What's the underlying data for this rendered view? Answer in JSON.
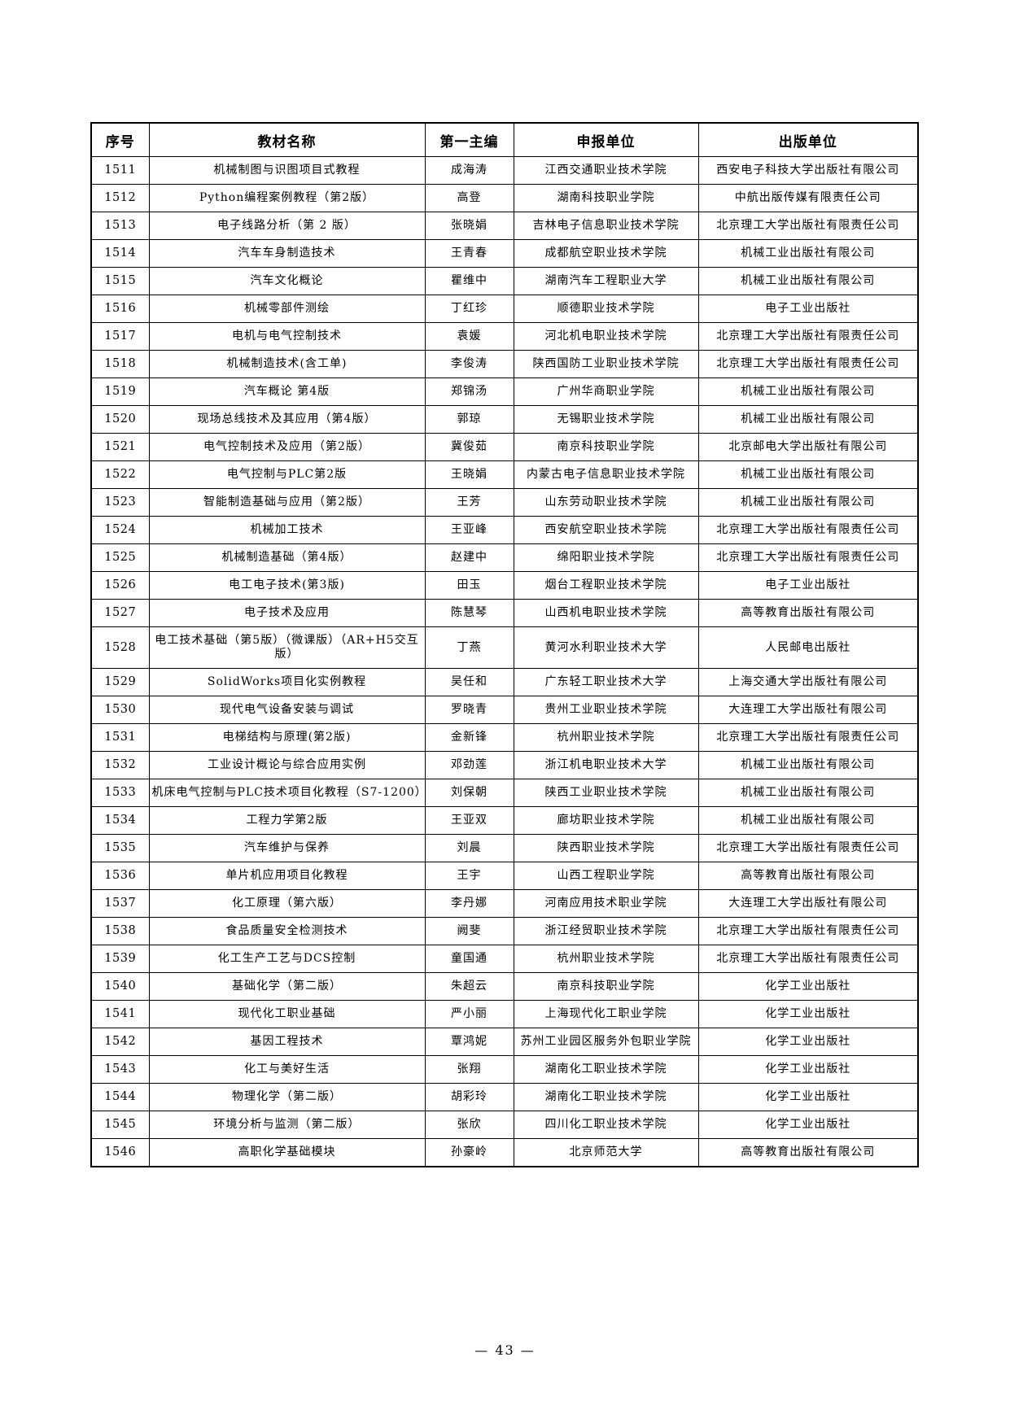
{
  "footer": {
    "page_number": "— 43 —"
  },
  "table": {
    "columns": [
      "序号",
      "教材名称",
      "第一主编",
      "申报单位",
      "出版单位"
    ],
    "rows": [
      {
        "no": "1511",
        "title": "机械制图与识图项目式教程",
        "editor": "成海涛",
        "applicant": "江西交通职业技术学院",
        "publisher": "西安电子科技大学出版社有限公司"
      },
      {
        "no": "1512",
        "title": "Python编程案例教程（第2版）",
        "editor": "高登",
        "applicant": "湖南科技职业学院",
        "publisher": "中航出版传媒有限责任公司"
      },
      {
        "no": "1513",
        "title": "电子线路分析（第 2 版）",
        "editor": "张晓娟",
        "applicant": "吉林电子信息职业技术学院",
        "publisher": "北京理工大学出版社有限责任公司"
      },
      {
        "no": "1514",
        "title": "汽车车身制造技术",
        "editor": "王青春",
        "applicant": "成都航空职业技术学院",
        "publisher": "机械工业出版社有限公司"
      },
      {
        "no": "1515",
        "title": "汽车文化概论",
        "editor": "瞿维中",
        "applicant": "湖南汽车工程职业大学",
        "publisher": "机械工业出版社有限公司"
      },
      {
        "no": "1516",
        "title": "机械零部件测绘",
        "editor": "丁红珍",
        "applicant": "顺德职业技术学院",
        "publisher": "电子工业出版社"
      },
      {
        "no": "1517",
        "title": "电机与电气控制技术",
        "editor": "袁媛",
        "applicant": "河北机电职业技术学院",
        "publisher": "北京理工大学出版社有限责任公司"
      },
      {
        "no": "1518",
        "title": "机械制造技术(含工单)",
        "editor": "李俊涛",
        "applicant": "陕西国防工业职业技术学院",
        "publisher": "北京理工大学出版社有限责任公司"
      },
      {
        "no": "1519",
        "title": "汽车概论 第4版",
        "editor": "郑锦汤",
        "applicant": "广州华商职业学院",
        "publisher": "机械工业出版社有限公司"
      },
      {
        "no": "1520",
        "title": "现场总线技术及其应用（第4版）",
        "editor": "郭琼",
        "applicant": "无锡职业技术学院",
        "publisher": "机械工业出版社有限公司"
      },
      {
        "no": "1521",
        "title": "电气控制技术及应用（第2版）",
        "editor": "冀俊茹",
        "applicant": "南京科技职业学院",
        "publisher": "北京邮电大学出版社有限公司"
      },
      {
        "no": "1522",
        "title": "电气控制与PLC第2版",
        "editor": "王晓娟",
        "applicant": "内蒙古电子信息职业技术学院",
        "publisher": "机械工业出版社有限公司"
      },
      {
        "no": "1523",
        "title": "智能制造基础与应用（第2版）",
        "editor": "王芳",
        "applicant": "山东劳动职业技术学院",
        "publisher": "机械工业出版社有限公司"
      },
      {
        "no": "1524",
        "title": "机械加工技术",
        "editor": "王亚峰",
        "applicant": "西安航空职业技术学院",
        "publisher": "北京理工大学出版社有限责任公司"
      },
      {
        "no": "1525",
        "title": "机械制造基础（第4版）",
        "editor": "赵建中",
        "applicant": "绵阳职业技术学院",
        "publisher": "北京理工大学出版社有限责任公司"
      },
      {
        "no": "1526",
        "title": "电工电子技术(第3版)",
        "editor": "田玉",
        "applicant": "烟台工程职业技术学院",
        "publisher": "电子工业出版社"
      },
      {
        "no": "1527",
        "title": "电子技术及应用",
        "editor": "陈慧琴",
        "applicant": "山西机电职业技术学院",
        "publisher": "高等教育出版社有限公司"
      },
      {
        "no": "1528",
        "title": "电工技术基础（第5版）（微课版）（AR+H5交互版）",
        "editor": "丁燕",
        "applicant": "黄河水利职业技术大学",
        "publisher": "人民邮电出版社"
      },
      {
        "no": "1529",
        "title": "SolidWorks项目化实例教程",
        "editor": "吴任和",
        "applicant": "广东轻工职业技术大学",
        "publisher": "上海交通大学出版社有限公司"
      },
      {
        "no": "1530",
        "title": "现代电气设备安装与调试",
        "editor": "罗晓青",
        "applicant": "贵州工业职业技术学院",
        "publisher": "大连理工大学出版社有限公司"
      },
      {
        "no": "1531",
        "title": "电梯结构与原理(第2版)",
        "editor": "金新锋",
        "applicant": "杭州职业技术学院",
        "publisher": "北京理工大学出版社有限责任公司"
      },
      {
        "no": "1532",
        "title": "工业设计概论与综合应用实例",
        "editor": "邓劲莲",
        "applicant": "浙江机电职业技术大学",
        "publisher": "机械工业出版社有限公司"
      },
      {
        "no": "1533",
        "title": "机床电气控制与PLC技术项目化教程（S7-1200）",
        "editor": "刘保朝",
        "applicant": "陕西工业职业技术学院",
        "publisher": "机械工业出版社有限公司"
      },
      {
        "no": "1534",
        "title": "工程力学第2版",
        "editor": "王亚双",
        "applicant": "廊坊职业技术学院",
        "publisher": "机械工业出版社有限公司"
      },
      {
        "no": "1535",
        "title": "汽车维护与保养",
        "editor": "刘晨",
        "applicant": "陕西职业技术学院",
        "publisher": "北京理工大学出版社有限责任公司"
      },
      {
        "no": "1536",
        "title": "单片机应用项目化教程",
        "editor": "王宇",
        "applicant": "山西工程职业学院",
        "publisher": "高等教育出版社有限公司"
      },
      {
        "no": "1537",
        "title": "化工原理（第六版）",
        "editor": "李丹娜",
        "applicant": "河南应用技术职业学院",
        "publisher": "大连理工大学出版社有限公司"
      },
      {
        "no": "1538",
        "title": "食品质量安全检测技术",
        "editor": "阙斐",
        "applicant": "浙江经贸职业技术学院",
        "publisher": "北京理工大学出版社有限责任公司"
      },
      {
        "no": "1539",
        "title": "化工生产工艺与DCS控制",
        "editor": "童国通",
        "applicant": "杭州职业技术学院",
        "publisher": "北京理工大学出版社有限责任公司"
      },
      {
        "no": "1540",
        "title": "基础化学（第二版）",
        "editor": "朱超云",
        "applicant": "南京科技职业学院",
        "publisher": "化学工业出版社"
      },
      {
        "no": "1541",
        "title": "现代化工职业基础",
        "editor": "严小丽",
        "applicant": "上海现代化工职业学院",
        "publisher": "化学工业出版社"
      },
      {
        "no": "1542",
        "title": "基因工程技术",
        "editor": "覃鸿妮",
        "applicant": "苏州工业园区服务外包职业学院",
        "publisher": "化学工业出版社"
      },
      {
        "no": "1543",
        "title": "化工与美好生活",
        "editor": "张翔",
        "applicant": "湖南化工职业技术学院",
        "publisher": "化学工业出版社"
      },
      {
        "no": "1544",
        "title": "物理化学（第二版）",
        "editor": "胡彩玲",
        "applicant": "湖南化工职业技术学院",
        "publisher": "化学工业出版社"
      },
      {
        "no": "1545",
        "title": "环境分析与监测（第二版）",
        "editor": "张欣",
        "applicant": "四川化工职业技术学院",
        "publisher": "化学工业出版社"
      },
      {
        "no": "1546",
        "title": "高职化学基础模块",
        "editor": "孙豪岭",
        "applicant": "北京师范大学",
        "publisher": "高等教育出版社有限公司"
      }
    ]
  }
}
